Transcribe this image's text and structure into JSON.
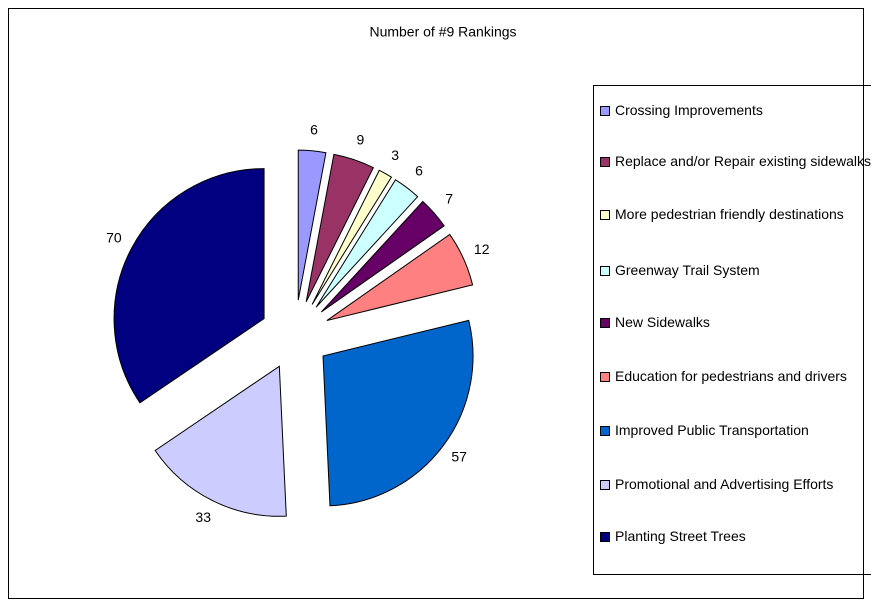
{
  "chart_data": {
    "type": "pie",
    "title": "Number of #9 Rankings",
    "categories": [
      "Crossing Improvements",
      "Replace and/or Repair existing sidewalks",
      "More pedestrian friendly destinations",
      "Greenway Trail System",
      "New Sidewalks",
      "Education for pedestrians and drivers",
      "Improved Public Transportation",
      "Promotional and Advertising Efforts",
      "Planting Street Trees"
    ],
    "values": [
      6,
      9,
      3,
      6,
      7,
      12,
      57,
      33,
      70
    ],
    "colors": [
      "#9999ff",
      "#993366",
      "#ffffcc",
      "#ccffff",
      "#660066",
      "#ff8080",
      "#0066cc",
      "#ccccff",
      "#000080"
    ],
    "legend": "right"
  }
}
